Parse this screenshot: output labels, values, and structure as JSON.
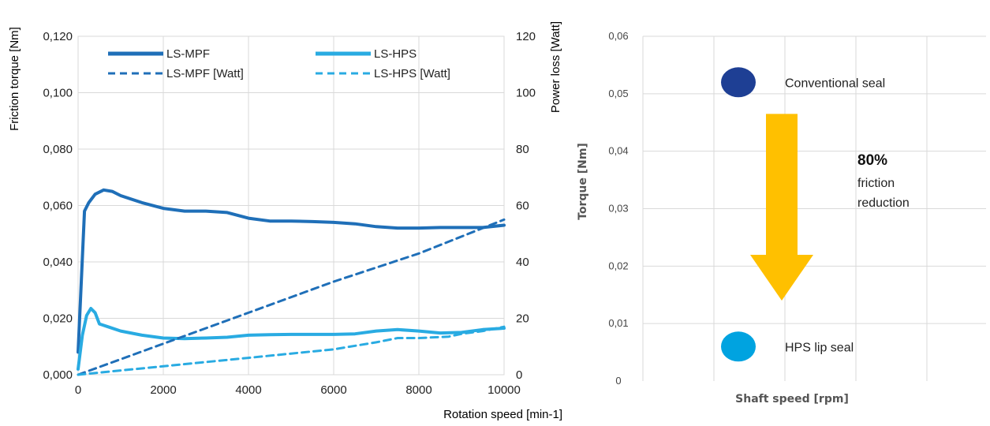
{
  "chart_data": [
    {
      "type": "line",
      "xlabel": "Rotation speed [min-1]",
      "ylabel": "Friction torque [Nm]",
      "y2label": "Power loss [Watt]",
      "xlim": [
        0,
        10000
      ],
      "ylim": [
        0,
        0.12
      ],
      "y2lim": [
        0,
        120
      ],
      "x_ticks": [
        "0",
        "2000",
        "4000",
        "6000",
        "8000",
        "10000"
      ],
      "y_ticks": [
        "0,000",
        "0,020",
        "0,040",
        "0,060",
        "0,080",
        "0,100",
        "0,120"
      ],
      "y2_ticks": [
        "0",
        "20",
        "40",
        "60",
        "80",
        "100",
        "120"
      ],
      "grid": true,
      "legend_position": "top",
      "series": [
        {
          "name": "LS-MPF",
          "axis": "left",
          "style": "solid",
          "color": "#1f6fb8",
          "x": [
            0,
            150,
            250,
            400,
            600,
            800,
            1000,
            1500,
            2000,
            2500,
            3000,
            3500,
            4000,
            4500,
            5000,
            5500,
            6000,
            6500,
            7000,
            7500,
            8000,
            8500,
            9000,
            9500,
            10000
          ],
          "y": [
            0.008,
            0.058,
            0.061,
            0.064,
            0.0655,
            0.065,
            0.0635,
            0.061,
            0.059,
            0.058,
            0.058,
            0.0575,
            0.0555,
            0.0545,
            0.0545,
            0.0543,
            0.054,
            0.0535,
            0.0525,
            0.052,
            0.052,
            0.0522,
            0.0522,
            0.0522,
            0.053
          ]
        },
        {
          "name": "LS-HPS",
          "axis": "left",
          "style": "solid",
          "color": "#29abe2",
          "x": [
            0,
            100,
            200,
            300,
            400,
            500,
            700,
            1000,
            1500,
            2000,
            2500,
            3000,
            3500,
            4000,
            4500,
            5000,
            5500,
            6000,
            6500,
            7000,
            7500,
            8000,
            8500,
            9000,
            9500,
            10000
          ],
          "y": [
            0.002,
            0.014,
            0.021,
            0.0235,
            0.022,
            0.018,
            0.017,
            0.0155,
            0.014,
            0.013,
            0.0128,
            0.013,
            0.0133,
            0.014,
            0.0142,
            0.0143,
            0.0143,
            0.0143,
            0.0145,
            0.0155,
            0.016,
            0.0155,
            0.0148,
            0.015,
            0.016,
            0.0165
          ]
        },
        {
          "name": "LS-MPF [Watt]",
          "axis": "right",
          "style": "dashed",
          "color": "#1f6fb8",
          "x": [
            0,
            2000,
            4000,
            6000,
            8000,
            10000
          ],
          "y": [
            0,
            11,
            22,
            33,
            43,
            55
          ]
        },
        {
          "name": "LS-HPS [Watt]",
          "axis": "right",
          "style": "dashed",
          "color": "#29abe2",
          "x": [
            0,
            1000,
            2000,
            3000,
            4000,
            5000,
            6000,
            7000,
            7500,
            8000,
            8700,
            9000,
            9500,
            10000
          ],
          "y": [
            0,
            1.5,
            3,
            4.5,
            6,
            7.5,
            9,
            11.5,
            13,
            13,
            13.5,
            14.5,
            15.5,
            17
          ]
        }
      ]
    },
    {
      "type": "scatter",
      "xlabel": "Shaft speed [rpm]",
      "ylabel": "Torque [Nm]",
      "ylim": [
        0,
        0.06
      ],
      "y_ticks": [
        "0",
        "0,01",
        "0,02",
        "0,03",
        "0,04",
        "0,05",
        "0,06"
      ],
      "grid": true,
      "points": [
        {
          "label": "Conventional seal",
          "y": 0.052,
          "color": "#1e3f94"
        },
        {
          "label": "HPS lip seal",
          "y": 0.006,
          "color": "#00a3e0"
        }
      ],
      "arrow": {
        "from": 0.0465,
        "to": 0.014,
        "color": "#ffc000"
      },
      "annotation": {
        "value": "80%",
        "line1": "friction",
        "line2": "reduction"
      }
    }
  ]
}
